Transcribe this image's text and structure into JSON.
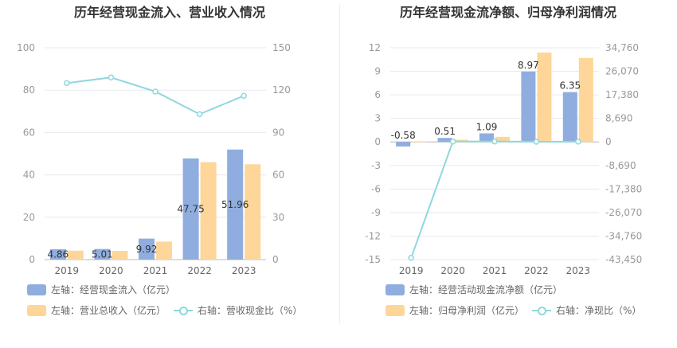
{
  "colors": {
    "blue": "#8fadde",
    "orange": "#fed699",
    "cyan": "#8fd8dc",
    "grid": "#e8e8ef",
    "axis_text": "#999999"
  },
  "left_chart": {
    "title": "历年经营现金流入、营业收入情况",
    "left_axis_ticks": [
      "0",
      "20",
      "40",
      "60",
      "80",
      "100"
    ],
    "right_axis_ticks": [
      "0",
      "30",
      "60",
      "90",
      "120",
      "150"
    ],
    "legend": {
      "bar1": "左轴：经营现金流入（亿元）",
      "bar2": "左轴：营业总收入（亿元）",
      "line": "右轴：营收现金比（%）"
    }
  },
  "right_chart": {
    "title": "历年经营现金流净额、归母净利润情况",
    "left_axis_ticks": [
      "12",
      "9",
      "6",
      "3",
      "0",
      "-3",
      "-6",
      "-9",
      "-12",
      "-15"
    ],
    "right_axis_ticks": [
      "34,760",
      "26,070",
      "17,380",
      "8,690",
      "0",
      "-8,690",
      "-17,380",
      "-26,070",
      "-34,760",
      "-43,450"
    ],
    "legend": {
      "bar1": "左轴：经营活动现金流净额（亿元）",
      "bar2": "左轴：归母净利润（亿元）",
      "line": "右轴：净现比（%）"
    }
  },
  "chart_data": [
    {
      "type": "bar",
      "title": "历年经营现金流入、营业收入情况",
      "categories": [
        "2019",
        "2020",
        "2021",
        "2022",
        "2023"
      ],
      "ylim_left": [
        0,
        100
      ],
      "ylim_right": [
        0,
        150
      ],
      "grid": true,
      "legend_position": "bottom-left",
      "series": [
        {
          "name": "左轴：经营现金流入（亿元）",
          "axis": "left",
          "kind": "bar",
          "values": [
            4.86,
            5.01,
            9.92,
            47.75,
            51.96
          ],
          "labels": [
            "4.86",
            "5.01",
            "9.92",
            "47.75",
            "51.96"
          ]
        },
        {
          "name": "左轴：营业总收入（亿元）",
          "axis": "left",
          "kind": "bar",
          "values": [
            4.2,
            4.1,
            8.5,
            46.0,
            45.0
          ]
        },
        {
          "name": "右轴：营收现金比（%）",
          "axis": "right",
          "kind": "line",
          "values": [
            125,
            129,
            119,
            103,
            116
          ]
        }
      ]
    },
    {
      "type": "bar",
      "title": "历年经营现金流净额、归母净利润情况",
      "categories": [
        "2019",
        "2020",
        "2021",
        "2022",
        "2023"
      ],
      "ylim_left": [
        -15,
        12
      ],
      "ylim_right": [
        -43450,
        34760
      ],
      "grid": true,
      "legend_position": "bottom-left",
      "series": [
        {
          "name": "左轴：经营活动现金流净额（亿元）",
          "axis": "left",
          "kind": "bar",
          "values": [
            -0.58,
            0.51,
            1.09,
            8.97,
            6.35
          ],
          "labels": [
            "-0.58",
            "0.51",
            "1.09",
            "8.97",
            "6.35"
          ]
        },
        {
          "name": "左轴：归母净利润（亿元）",
          "axis": "left",
          "kind": "bar",
          "values": [
            0.02,
            0.28,
            0.65,
            11.4,
            10.7
          ]
        },
        {
          "name": "右轴：净现比（%）",
          "axis": "right",
          "kind": "line",
          "values": [
            -42800,
            150,
            160,
            80,
            100
          ]
        }
      ]
    }
  ]
}
